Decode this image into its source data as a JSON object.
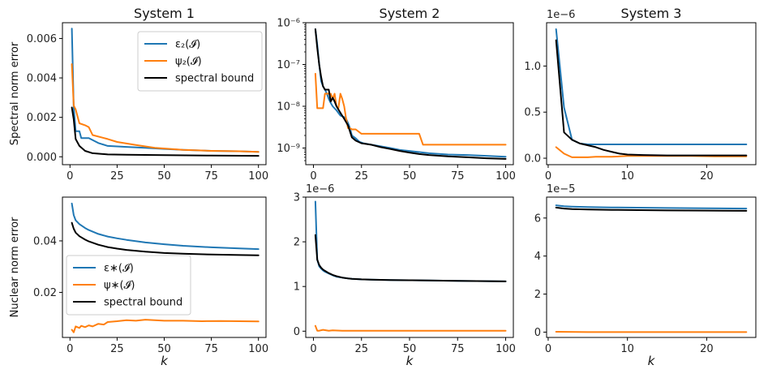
{
  "chart_data": [
    {
      "type": "line",
      "panel": "spectral-system-1",
      "title": "System 1",
      "ylabel": "Spectral norm error",
      "xlabel": "",
      "yscale": "linear",
      "xlim": [
        -4,
        104
      ],
      "ylim": [
        -0.0004,
        0.0068
      ],
      "xticks": [
        0,
        25,
        50,
        75,
        100
      ],
      "xtick_labels": [
        "0",
        "25",
        "50",
        "75",
        "100"
      ],
      "yticks": [
        0.0,
        0.002,
        0.004,
        0.006
      ],
      "ytick_labels": [
        "0.000",
        "0.002",
        "0.004",
        "0.006"
      ],
      "legend": {
        "placement": "upper-right",
        "labels": [
          "ε₂(𝓘)",
          "ψ₂(𝓘)",
          "spectral bound"
        ]
      },
      "series": [
        {
          "name": "ε₂(𝓘)",
          "color": "#1f77b4",
          "x": [
            1,
            2,
            3,
            5,
            6,
            10,
            15,
            20,
            30,
            40,
            50,
            60,
            75,
            90,
            100
          ],
          "y": [
            0.0065,
            0.0025,
            0.0013,
            0.0013,
            0.00095,
            0.00095,
            0.0007,
            0.00055,
            0.0005,
            0.00045,
            0.0004,
            0.00035,
            0.0003,
            0.00028,
            0.00025
          ]
        },
        {
          "name": "ψ₂(𝓘)",
          "color": "#ff7f0e",
          "x": [
            1,
            2,
            3,
            5,
            8,
            10,
            12,
            20,
            25,
            35,
            45,
            60,
            75,
            90,
            100
          ],
          "y": [
            0.0047,
            0.0026,
            0.0024,
            0.0017,
            0.0016,
            0.0015,
            0.0011,
            0.0009,
            0.00075,
            0.0006,
            0.00045,
            0.00035,
            0.0003,
            0.00028,
            0.00025
          ]
        },
        {
          "name": "spectral bound",
          "color": "#000000",
          "x": [
            1,
            2,
            3,
            5,
            8,
            12,
            20,
            30,
            50,
            75,
            100
          ],
          "y": [
            0.0025,
            0.0019,
            0.0009,
            0.00055,
            0.0003,
            0.00018,
            0.00012,
            0.0001,
            8e-05,
            6e-05,
            5e-05
          ]
        }
      ]
    },
    {
      "type": "line",
      "panel": "spectral-system-2",
      "title": "System 2",
      "ylabel": "",
      "xlabel": "",
      "yscale": "log",
      "xlim": [
        -4,
        104
      ],
      "ylim": [
        4e-10,
        1e-06
      ],
      "xticks": [
        0,
        25,
        50,
        75,
        100
      ],
      "xtick_labels": [
        "0",
        "25",
        "50",
        "75",
        "100"
      ],
      "yticks": [
        1e-09,
        1e-08,
        1e-07,
        1e-06
      ],
      "ytick_labels": [
        "10⁻⁹",
        "10⁻⁸",
        "10⁻⁷",
        "10⁻⁶"
      ],
      "series": [
        {
          "name": "ε₂(𝓘)",
          "color": "#1f77b4",
          "x": [
            1,
            2,
            3,
            4,
            5,
            6,
            7,
            8,
            9,
            10,
            12,
            14,
            16,
            17,
            18,
            19,
            20,
            22,
            24,
            26,
            30,
            35,
            40,
            45,
            50,
            55,
            60,
            70,
            80,
            90,
            100
          ],
          "y": [
            7e-07,
            3e-07,
            1e-07,
            4e-08,
            3e-08,
            2.5e-08,
            2e-08,
            1.5e-08,
            1.2e-08,
            1e-08,
            8e-09,
            6e-09,
            5.5e-09,
            5e-09,
            4e-09,
            3e-09,
            2e-09,
            1.7e-09,
            1.4e-09,
            1.3e-09,
            1.2e-09,
            1.1e-09,
            1e-09,
            9e-10,
            8.5e-10,
            8e-10,
            7.5e-10,
            7e-10,
            6.8e-10,
            6.5e-10,
            6.2e-10
          ]
        },
        {
          "name": "ψ₂(𝓘)",
          "color": "#ff7f0e",
          "x": [
            1,
            2,
            3,
            5,
            6,
            7,
            8,
            9,
            10,
            11,
            12,
            13,
            14,
            15,
            16,
            17,
            18,
            19,
            20,
            22,
            25,
            30,
            35,
            40,
            45,
            50,
            55,
            57,
            60,
            70,
            80,
            90,
            100
          ],
          "y": [
            6e-08,
            9e-09,
            9e-09,
            9e-09,
            2e-08,
            2e-08,
            2e-08,
            2e-08,
            1.5e-08,
            2e-08,
            1e-08,
            9e-09,
            2e-08,
            1.5e-08,
            1e-08,
            5e-09,
            3e-09,
            3e-09,
            2.8e-09,
            2.8e-09,
            2.2e-09,
            2.2e-09,
            2.2e-09,
            2.2e-09,
            2.2e-09,
            2.2e-09,
            2.2e-09,
            1.2e-09,
            1.2e-09,
            1.2e-09,
            1.2e-09,
            1.2e-09,
            1.2e-09
          ]
        },
        {
          "name": "spectral bound",
          "color": "#000000",
          "x": [
            1,
            2,
            3,
            4,
            5,
            6,
            8,
            9,
            10,
            11,
            12,
            14,
            16,
            18,
            19,
            20,
            22,
            25,
            30,
            35,
            40,
            45,
            50,
            55,
            60,
            70,
            80,
            90,
            100
          ],
          "y": [
            7e-07,
            2.5e-07,
            1e-07,
            5e-08,
            3e-08,
            2.5e-08,
            2.5e-08,
            1.3e-08,
            1.6e-08,
            1.3e-08,
            1e-08,
            7e-09,
            5e-09,
            3.5e-09,
            2.5e-09,
            1.8e-09,
            1.5e-09,
            1.3e-09,
            1.2e-09,
            1.05e-09,
            9.5e-10,
            8.5e-10,
            7.8e-10,
            7.2e-10,
            6.8e-10,
            6.3e-10,
            6e-10,
            5.7e-10,
            5.5e-10
          ]
        }
      ]
    },
    {
      "type": "line",
      "panel": "spectral-system-3",
      "title": "System 3",
      "ylabel": "",
      "xlabel": "",
      "yscale": "linear",
      "offset_label": "1e−6",
      "xlim": [
        -0.2,
        26.2
      ],
      "ylim": [
        -0.07,
        1.47
      ],
      "xticks": [
        0,
        10,
        20
      ],
      "xtick_labels": [
        "0",
        "10",
        "20"
      ],
      "yticks": [
        0.0,
        0.5,
        1.0
      ],
      "ytick_labels": [
        "0.0",
        "0.5",
        "1.0"
      ],
      "series": [
        {
          "name": "ε₂(𝓘)",
          "color": "#1f77b4",
          "x": [
            1,
            2,
            3,
            4,
            5,
            6,
            7,
            8,
            10,
            12,
            14,
            16,
            18,
            20,
            22,
            24,
            25
          ],
          "y": [
            1.4,
            0.55,
            0.2,
            0.16,
            0.15,
            0.15,
            0.15,
            0.15,
            0.15,
            0.15,
            0.15,
            0.15,
            0.15,
            0.15,
            0.15,
            0.15,
            0.15
          ]
        },
        {
          "name": "ψ₂(𝓘)",
          "color": "#ff7f0e",
          "x": [
            1,
            2,
            3,
            4,
            5,
            6,
            7,
            8,
            9,
            10,
            12,
            15,
            18,
            21,
            25
          ],
          "y": [
            0.12,
            0.05,
            0.01,
            0.01,
            0.01,
            0.015,
            0.015,
            0.015,
            0.02,
            0.025,
            0.025,
            0.025,
            0.025,
            0.02,
            0.02
          ]
        },
        {
          "name": "spectral bound",
          "color": "#000000",
          "x": [
            1,
            2,
            3,
            4,
            5,
            6,
            7,
            8,
            9,
            10,
            12,
            15,
            18,
            21,
            25
          ],
          "y": [
            1.28,
            0.28,
            0.2,
            0.16,
            0.14,
            0.12,
            0.09,
            0.07,
            0.05,
            0.04,
            0.035,
            0.03,
            0.03,
            0.03,
            0.03
          ]
        }
      ]
    },
    {
      "type": "line",
      "panel": "nuclear-system-1",
      "title": "",
      "ylabel": "Nuclear norm error",
      "xlabel": "k",
      "yscale": "linear",
      "xlim": [
        -4,
        104
      ],
      "ylim": [
        0.0025,
        0.057
      ],
      "xticks": [
        0,
        25,
        50,
        75,
        100
      ],
      "xtick_labels": [
        "0",
        "25",
        "50",
        "75",
        "100"
      ],
      "yticks": [
        0.02,
        0.04
      ],
      "ytick_labels": [
        "0.02",
        "0.04"
      ],
      "legend": {
        "placement": "lower-left",
        "labels": [
          "ε∗(𝓘)",
          "ψ∗(𝓘)",
          "spectral bound"
        ]
      },
      "series": [
        {
          "name": "ε∗(𝓘)",
          "color": "#1f77b4",
          "x": [
            1,
            2,
            3,
            5,
            8,
            10,
            15,
            20,
            25,
            30,
            40,
            50,
            60,
            75,
            90,
            100
          ],
          "y": [
            0.0545,
            0.05,
            0.048,
            0.0465,
            0.045,
            0.0442,
            0.0427,
            0.0417,
            0.041,
            0.0404,
            0.0394,
            0.0387,
            0.0381,
            0.0375,
            0.0371,
            0.0368
          ]
        },
        {
          "name": "ψ∗(𝓘)",
          "color": "#ff7f0e",
          "x": [
            1,
            2,
            3,
            5,
            6,
            8,
            10,
            12,
            15,
            18,
            20,
            25,
            30,
            35,
            40,
            45,
            50,
            60,
            70,
            80,
            90,
            100
          ],
          "y": [
            0.0055,
            0.0045,
            0.0068,
            0.0062,
            0.007,
            0.0065,
            0.0072,
            0.0068,
            0.0078,
            0.0075,
            0.0085,
            0.0088,
            0.0092,
            0.009,
            0.0094,
            0.0092,
            0.009,
            0.009,
            0.0088,
            0.0089,
            0.0088,
            0.0087
          ]
        },
        {
          "name": "spectral bound",
          "color": "#000000",
          "x": [
            1,
            2,
            3,
            5,
            8,
            10,
            15,
            20,
            25,
            30,
            40,
            50,
            60,
            75,
            90,
            100
          ],
          "y": [
            0.047,
            0.0447,
            0.0432,
            0.0418,
            0.0405,
            0.0398,
            0.0385,
            0.0376,
            0.037,
            0.0365,
            0.0358,
            0.0353,
            0.035,
            0.0347,
            0.0345,
            0.0344
          ]
        }
      ]
    },
    {
      "type": "line",
      "panel": "nuclear-system-2",
      "title": "",
      "ylabel": "",
      "xlabel": "k",
      "yscale": "linear",
      "offset_label": "1e−6",
      "xlim": [
        -4,
        104
      ],
      "ylim": [
        -0.14,
        3.0
      ],
      "xticks": [
        0,
        25,
        50,
        75,
        100
      ],
      "xtick_labels": [
        "0",
        "25",
        "50",
        "75",
        "100"
      ],
      "yticks": [
        0,
        1,
        2,
        3
      ],
      "ytick_labels": [
        "0",
        "1",
        "2",
        "3"
      ],
      "series": [
        {
          "name": "ε∗(𝓘)",
          "color": "#1f77b4",
          "x": [
            1,
            2,
            3,
            4,
            5,
            6,
            8,
            10,
            12,
            15,
            18,
            20,
            25,
            30,
            40,
            50,
            60,
            75,
            90,
            100
          ],
          "y": [
            2.9,
            1.6,
            1.45,
            1.4,
            1.36,
            1.33,
            1.29,
            1.25,
            1.22,
            1.2,
            1.18,
            1.17,
            1.16,
            1.155,
            1.145,
            1.14,
            1.135,
            1.125,
            1.12,
            1.115
          ]
        },
        {
          "name": "ψ∗(𝓘)",
          "color": "#ff7f0e",
          "x": [
            1,
            2,
            3,
            5,
            8,
            10,
            15,
            20,
            30,
            50,
            75,
            100
          ],
          "y": [
            0.12,
            0.01,
            0.01,
            0.03,
            0.01,
            0.02,
            0.01,
            0.01,
            0.01,
            0.01,
            0.01,
            0.01
          ]
        },
        {
          "name": "spectral bound",
          "color": "#000000",
          "x": [
            1,
            2,
            3,
            4,
            5,
            6,
            8,
            10,
            12,
            15,
            18,
            20,
            25,
            30,
            40,
            50,
            60,
            75,
            90,
            100
          ],
          "y": [
            2.15,
            1.6,
            1.48,
            1.42,
            1.38,
            1.35,
            1.3,
            1.26,
            1.23,
            1.2,
            1.18,
            1.17,
            1.16,
            1.155,
            1.145,
            1.14,
            1.135,
            1.125,
            1.12,
            1.115
          ]
        }
      ]
    },
    {
      "type": "line",
      "panel": "nuclear-system-3",
      "title": "",
      "ylabel": "",
      "xlabel": "k",
      "yscale": "linear",
      "offset_label": "1e−5",
      "xlim": [
        -0.2,
        26.2
      ],
      "ylim": [
        -0.28,
        7.1
      ],
      "xticks": [
        0,
        10,
        20
      ],
      "xtick_labels": [
        "0",
        "10",
        "20"
      ],
      "yticks": [
        0,
        2,
        4,
        6
      ],
      "ytick_labels": [
        "0",
        "2",
        "4",
        "6"
      ],
      "series": [
        {
          "name": "ε∗(𝓘)",
          "color": "#1f77b4",
          "x": [
            1,
            2,
            3,
            5,
            8,
            10,
            15,
            20,
            25
          ],
          "y": [
            6.67,
            6.62,
            6.6,
            6.58,
            6.56,
            6.55,
            6.53,
            6.51,
            6.5
          ]
        },
        {
          "name": "ψ∗(𝓘)",
          "color": "#ff7f0e",
          "x": [
            1,
            5,
            10,
            15,
            20,
            25
          ],
          "y": [
            0.02,
            0.0,
            0.0,
            0.0,
            0.0,
            0.0
          ]
        },
        {
          "name": "spectral bound",
          "color": "#000000",
          "x": [
            1,
            2,
            3,
            5,
            8,
            10,
            15,
            20,
            25
          ],
          "y": [
            6.55,
            6.5,
            6.47,
            6.45,
            6.43,
            6.42,
            6.4,
            6.39,
            6.38
          ]
        }
      ]
    }
  ]
}
